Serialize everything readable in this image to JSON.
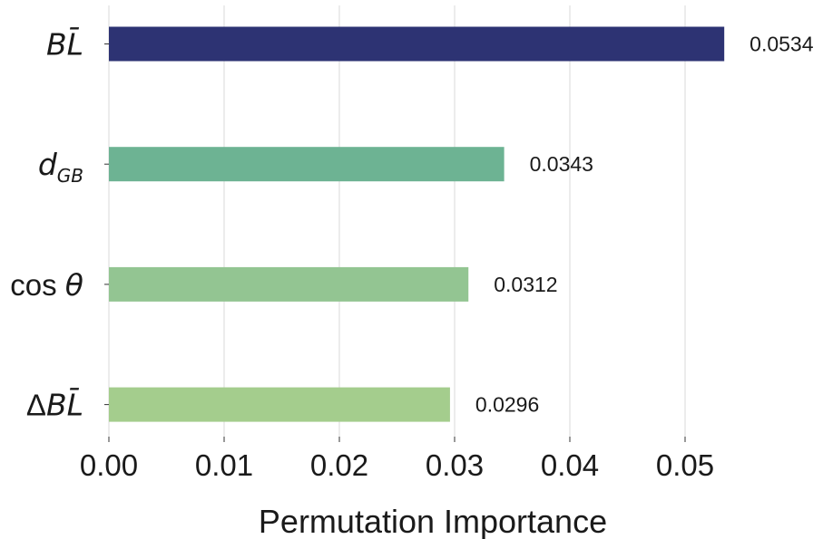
{
  "chart_data": {
    "type": "bar",
    "orientation": "horizontal",
    "categories": [
      "BL-bar",
      "d_GB",
      "cos_theta",
      "delta_BL-bar"
    ],
    "category_labels": [
      {
        "text": "BL̄"
      },
      {
        "text": "d",
        "sub": "GB"
      },
      {
        "text": "θ",
        "prefix": "cos "
      },
      {
        "text": "BL̄",
        "prefix": "Δ"
      }
    ],
    "values": [
      0.0534,
      0.0343,
      0.0312,
      0.0296
    ],
    "value_labels": [
      "0.0534",
      "0.0343",
      "0.0312",
      "0.0296"
    ],
    "bar_colors": [
      "#2d3373",
      "#6db393",
      "#93c592",
      "#a4cd8d"
    ],
    "xlabel": "Permutation Importance",
    "ylabel": "",
    "title": "",
    "xlim": [
      0,
      0.0565
    ],
    "xticks": [
      0.0,
      0.01,
      0.02,
      0.03,
      0.04,
      0.05
    ],
    "xtick_labels": [
      "0.00",
      "0.01",
      "0.02",
      "0.03",
      "0.04",
      "0.05"
    ],
    "grid": "vertical",
    "legend": "none"
  }
}
